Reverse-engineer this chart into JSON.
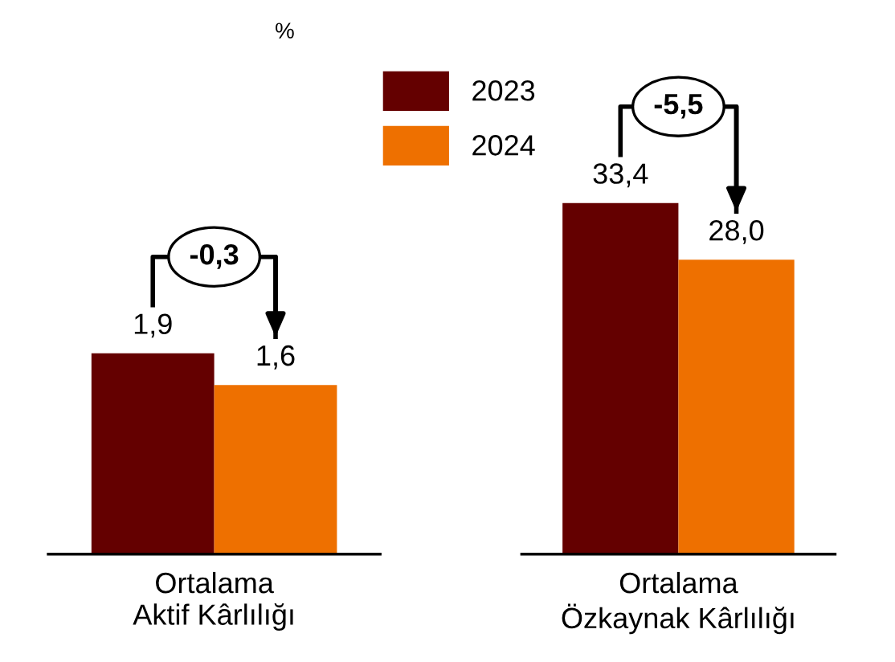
{
  "chart_data": [
    {
      "type": "bar",
      "subtitle": "%",
      "categories": [
        "Ortalama\nAktif Kârlılığı"
      ],
      "series": [
        {
          "name": "2023",
          "color": "#640000",
          "values": [
            1.9
          ],
          "value_labels": [
            "1,9"
          ]
        },
        {
          "name": "2024",
          "color": "#ee7000",
          "values": [
            1.6
          ],
          "value_labels": [
            "1,6"
          ]
        }
      ],
      "tick_labels": "x",
      "grid": false,
      "legend": "top",
      "annotations": [
        "-0,3"
      ]
    },
    {
      "type": "bar",
      "categories": [
        "Ortalama\nÖzkaynak Kârlılığı"
      ],
      "series": [
        {
          "name": "2023",
          "color": "#640000",
          "values": [
            33.4
          ],
          "value_labels": [
            "33,4"
          ]
        },
        {
          "name": "2024",
          "color": "#ee7000",
          "values": [
            28.0
          ],
          "value_labels": [
            "28,0"
          ]
        }
      ],
      "tick_labels": "x",
      "grid": false,
      "annotations": [
        "-5,5"
      ]
    }
  ]
}
